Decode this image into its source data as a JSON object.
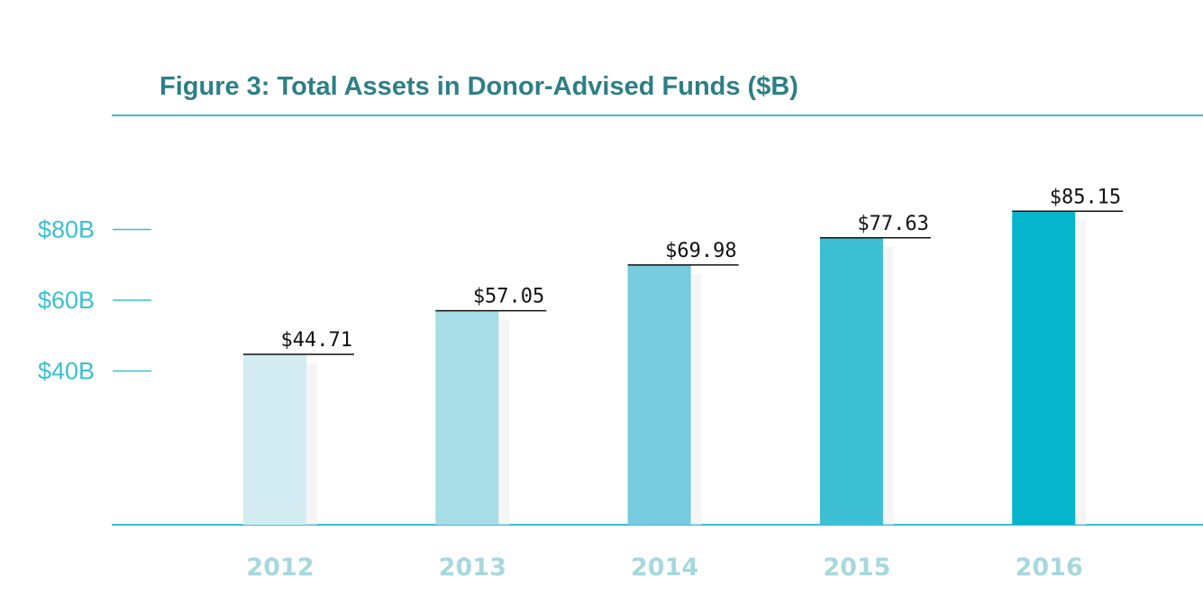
{
  "chart_data": {
    "type": "bar",
    "title": "Figure 3: Total Assets in Donor-Advised Funds ($B)",
    "categories": [
      "2012",
      "2013",
      "2014",
      "2015",
      "2016"
    ],
    "values": [
      44.71,
      57.05,
      69.98,
      77.63,
      85.15
    ],
    "value_labels": [
      "$44.71",
      "$57.05",
      "$69.98",
      "$77.63",
      "$85.15"
    ],
    "bar_colors": [
      "#d3ecf1",
      "#a6dde6",
      "#76cbde",
      "#3dbfd4",
      "#05b5cc"
    ],
    "yticks": [
      {
        "value": 40,
        "label": "$40B"
      },
      {
        "value": 60,
        "label": "$60B"
      },
      {
        "value": 80,
        "label": "$80B"
      }
    ],
    "xlabel": "",
    "ylabel": "",
    "grid": false,
    "legend": "none",
    "colors": {
      "title": "#2d7f86",
      "accent": "#3bbfd0",
      "year_label": "#a6d8de",
      "value_label": "#111111"
    }
  }
}
